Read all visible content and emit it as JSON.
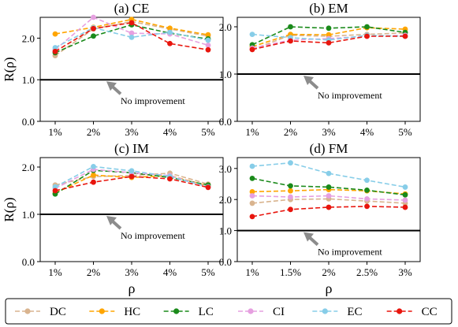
{
  "chart_data": [
    {
      "type": "line",
      "title": "(a) CE",
      "ylabel": "R(ρ)",
      "xlabel": "",
      "x": [
        "1%",
        "2%",
        "3%",
        "4%",
        "5%"
      ],
      "ylim": [
        0,
        2.5
      ],
      "yticks": [
        "0.0",
        "1.0",
        "2.0"
      ],
      "reference_line": {
        "y": 1.0,
        "label": "No improvement"
      },
      "series": [
        {
          "name": "DC",
          "values": [
            1.58,
            2.22,
            2.4,
            2.22,
            2.05
          ]
        },
        {
          "name": "HC",
          "values": [
            2.1,
            2.26,
            2.45,
            2.24,
            2.08
          ]
        },
        {
          "name": "LC",
          "values": [
            1.65,
            2.05,
            2.32,
            2.12,
            1.98
          ]
        },
        {
          "name": "CI",
          "values": [
            1.72,
            2.5,
            2.12,
            2.1,
            1.83
          ]
        },
        {
          "name": "EC",
          "values": [
            1.77,
            2.25,
            2.02,
            2.14,
            1.95
          ]
        },
        {
          "name": "CC",
          "values": [
            1.68,
            2.23,
            2.37,
            1.87,
            1.72
          ]
        }
      ]
    },
    {
      "type": "line",
      "title": "(b) EM",
      "ylabel": "",
      "xlabel": "",
      "x": [
        "1%",
        "2%",
        "3%",
        "4%",
        "5%"
      ],
      "ylim": [
        0,
        2.2
      ],
      "yticks": [
        "0.0",
        "1.0",
        "2.0"
      ],
      "reference_line": {
        "y": 1.0,
        "label": "No improvement"
      },
      "series": [
        {
          "name": "DC",
          "values": [
            1.52,
            1.82,
            1.8,
            1.84,
            1.87
          ]
        },
        {
          "name": "HC",
          "values": [
            1.58,
            1.84,
            1.83,
            1.98,
            1.95
          ]
        },
        {
          "name": "LC",
          "values": [
            1.62,
            2.0,
            1.97,
            2.0,
            1.88
          ]
        },
        {
          "name": "CI",
          "values": [
            1.55,
            1.72,
            1.75,
            1.8,
            1.82
          ]
        },
        {
          "name": "EC",
          "values": [
            1.84,
            1.77,
            1.72,
            1.82,
            1.8
          ]
        },
        {
          "name": "CC",
          "values": [
            1.52,
            1.7,
            1.66,
            1.8,
            1.8
          ]
        }
      ]
    },
    {
      "type": "line",
      "title": "(c) IM",
      "ylabel": "R(ρ)",
      "xlabel": "ρ",
      "x": [
        "1%",
        "2%",
        "3%",
        "4%",
        "5%"
      ],
      "ylim": [
        0,
        2.2
      ],
      "yticks": [
        "0.0",
        "1.0",
        "2.0"
      ],
      "reference_line": {
        "y": 1.0,
        "label": "No improvement"
      },
      "series": [
        {
          "name": "DC",
          "values": [
            1.62,
            1.8,
            1.82,
            1.87,
            1.64
          ]
        },
        {
          "name": "HC",
          "values": [
            1.45,
            1.83,
            1.78,
            1.82,
            1.6
          ]
        },
        {
          "name": "LC",
          "values": [
            1.43,
            1.93,
            1.88,
            1.78,
            1.62
          ]
        },
        {
          "name": "CI",
          "values": [
            1.55,
            1.95,
            1.88,
            1.82,
            1.58
          ]
        },
        {
          "name": "EC",
          "values": [
            1.58,
            2.01,
            1.92,
            1.8,
            1.58
          ]
        },
        {
          "name": "CC",
          "values": [
            1.5,
            1.68,
            1.8,
            1.75,
            1.57
          ]
        }
      ]
    },
    {
      "type": "line",
      "title": "(d) FM",
      "ylabel": "",
      "xlabel": "ρ",
      "x": [
        "1%",
        "1.5%",
        "2%",
        "2.5%",
        "3%"
      ],
      "ylim": [
        0,
        3.35
      ],
      "yticks": [
        "0.0",
        "1.0",
        "2.0",
        "3.0"
      ],
      "reference_line": {
        "y": 1.0,
        "label": "No improvement"
      },
      "series": [
        {
          "name": "DC",
          "values": [
            1.88,
            2.0,
            2.02,
            1.95,
            1.88
          ]
        },
        {
          "name": "HC",
          "values": [
            2.25,
            2.28,
            2.32,
            2.28,
            2.18
          ]
        },
        {
          "name": "LC",
          "values": [
            2.68,
            2.44,
            2.4,
            2.3,
            2.15
          ]
        },
        {
          "name": "CI",
          "values": [
            2.12,
            2.08,
            2.12,
            2.02,
            1.98
          ]
        },
        {
          "name": "EC",
          "values": [
            3.07,
            3.18,
            2.84,
            2.62,
            2.4
          ]
        },
        {
          "name": "CC",
          "values": [
            1.45,
            1.68,
            1.75,
            1.78,
            1.75
          ]
        }
      ]
    }
  ],
  "legend": {
    "position": "bottom",
    "items": [
      {
        "name": "DC",
        "color": "#d9b48f"
      },
      {
        "name": "HC",
        "color": "#ffa500"
      },
      {
        "name": "LC",
        "color": "#1a8a1a"
      },
      {
        "name": "CI",
        "color": "#e6a0e0"
      },
      {
        "name": "EC",
        "color": "#87cde8"
      },
      {
        "name": "CC",
        "color": "#e8150d"
      }
    ]
  }
}
